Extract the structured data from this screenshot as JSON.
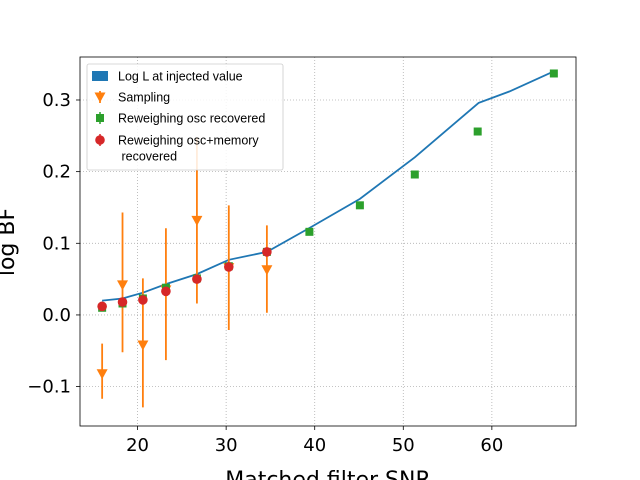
{
  "chart_data": {
    "type": "scatter",
    "xlabel": "Matched filter SNR",
    "ylabel": "log BF",
    "xlim": [
      13.5,
      69.5
    ],
    "ylim": [
      -0.155,
      0.36
    ],
    "xticks": [
      20,
      30,
      40,
      50,
      60
    ],
    "yticks": [
      -0.1,
      0.0,
      0.1,
      0.2,
      0.3
    ],
    "xtick_labels": [
      "20",
      "30",
      "40",
      "50",
      "60"
    ],
    "ytick_labels": [
      "−0.1",
      "0.0",
      "0.1",
      "0.2",
      "0.3"
    ],
    "grid": true,
    "legend_position": "top-left",
    "series": [
      {
        "name": "Log L at injected value",
        "kind": "line",
        "color": "#1f77b4",
        "x": [
          16.0,
          18.3,
          20.6,
          23.2,
          26.7,
          30.3,
          34.6,
          39.5,
          45.1,
          51.3,
          58.5,
          62.0,
          67.0
        ],
        "y": [
          0.02,
          0.023,
          0.031,
          0.043,
          0.057,
          0.077,
          0.088,
          0.122,
          0.162,
          0.22,
          0.296,
          0.312,
          0.34
        ]
      },
      {
        "name": "Sampling",
        "kind": "errorbar",
        "marker": "triangle-down",
        "color": "#ff7f0e",
        "x": [
          16.0,
          18.3,
          20.6,
          23.2,
          26.7,
          30.3,
          34.6
        ],
        "y": [
          -0.082,
          0.042,
          -0.042,
          0.035,
          0.132,
          0.066,
          0.063
        ],
        "yerr_low": [
          -0.117,
          -0.052,
          -0.129,
          -0.063,
          0.016,
          -0.021,
          0.003
        ],
        "yerr_high": [
          -0.04,
          0.143,
          0.051,
          0.121,
          0.248,
          0.153,
          0.125
        ]
      },
      {
        "name": "Reweighing osc recovered",
        "kind": "marker",
        "marker": "square",
        "color": "#2ca02c",
        "x": [
          16.0,
          18.3,
          20.6,
          23.2,
          26.7,
          30.3,
          34.6,
          39.4,
          45.1,
          51.3,
          58.4,
          67.0
        ],
        "y": [
          0.01,
          0.016,
          0.023,
          0.038,
          0.051,
          0.068,
          0.088,
          0.116,
          0.153,
          0.196,
          0.256,
          0.337
        ]
      },
      {
        "name": "Reweighing osc+memory\n recovered",
        "kind": "marker",
        "marker": "circle",
        "color": "#d62728",
        "x": [
          16.0,
          18.3,
          20.6,
          23.2,
          26.7,
          30.3,
          34.6
        ],
        "y": [
          0.012,
          0.018,
          0.021,
          0.033,
          0.05,
          0.067,
          0.088
        ]
      }
    ]
  }
}
